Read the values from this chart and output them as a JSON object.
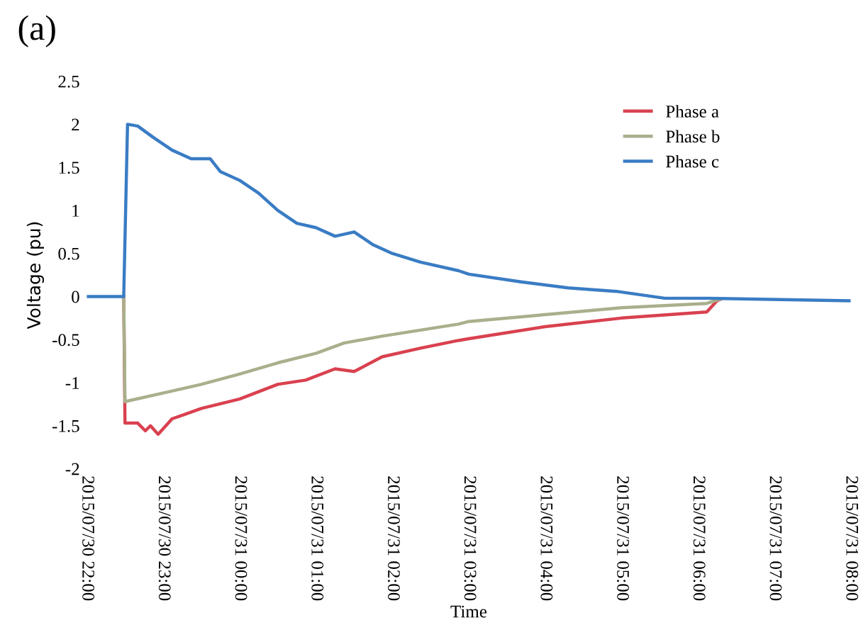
{
  "chart_data": {
    "type": "line",
    "title": "(a)",
    "xlabel": "Time",
    "ylabel": "Voltage (pu)",
    "xlim": [
      "2015-07-30T22:00",
      "2015-07-31T08:00"
    ],
    "xticks": [
      {
        "value": "2015-07-30T22:00",
        "label": "2015/07/30 22:00"
      },
      {
        "value": "2015-07-30T23:00",
        "label": "2015/07/30 23:00"
      },
      {
        "value": "2015-07-31T00:00",
        "label": "2015/07/31 00:00"
      },
      {
        "value": "2015-07-31T01:00",
        "label": "2015/07/31 01:00"
      },
      {
        "value": "2015-07-31T02:00",
        "label": "2015/07/31 02:00"
      },
      {
        "value": "2015-07-31T03:00",
        "label": "2015/07/31 03:00"
      },
      {
        "value": "2015-07-31T04:00",
        "label": "2015/07/31 04:00"
      },
      {
        "value": "2015-07-31T05:00",
        "label": "2015/07/31 05:00"
      },
      {
        "value": "2015-07-31T06:00",
        "label": "2015/07/31 06:00"
      },
      {
        "value": "2015-07-31T07:00",
        "label": "2015/07/31 07:00"
      },
      {
        "value": "2015-07-31T08:00",
        "label": "2015/07/31 08:00"
      }
    ],
    "ylim": [
      -2,
      2.5
    ],
    "yticks": [
      -2,
      -1.5,
      -1,
      -0.5,
      0,
      0.5,
      1,
      1.5,
      2,
      2.5
    ],
    "grid": false,
    "legend": "top right",
    "marker": "none",
    "line_style": "solid",
    "series": [
      {
        "name": "Phase a",
        "color": "#d9414f",
        "x": [
          "2015-07-30T22:29",
          "2015-07-30T22:30",
          "2015-07-30T22:40",
          "2015-07-30T22:46",
          "2015-07-30T22:50",
          "2015-07-30T22:56",
          "2015-07-30T23:07",
          "2015-07-30T23:30",
          "2015-07-31T00:00",
          "2015-07-31T00:30",
          "2015-07-31T00:52",
          "2015-07-31T01:15",
          "2015-07-31T01:30",
          "2015-07-31T01:52",
          "2015-07-31T02:22",
          "2015-07-31T02:52",
          "2015-07-31T03:00",
          "2015-07-31T04:00",
          "2015-07-31T05:00",
          "2015-07-31T06:07",
          "2015-07-31T06:15",
          "2015-07-31T06:18"
        ],
        "values": [
          0,
          -1.47,
          -1.47,
          -1.56,
          -1.5,
          -1.6,
          -1.42,
          -1.3,
          -1.19,
          -1.02,
          -0.97,
          -0.84,
          -0.87,
          -0.7,
          -0.6,
          -0.51,
          -0.49,
          -0.35,
          -0.25,
          -0.18,
          -0.05,
          -0.03
        ]
      },
      {
        "name": "Phase b",
        "color": "#a8b08c",
        "x": [
          "2015-07-30T22:29",
          "2015-07-30T22:30",
          "2015-07-30T23:00",
          "2015-07-30T23:30",
          "2015-07-31T00:00",
          "2015-07-31T00:30",
          "2015-07-31T01:00",
          "2015-07-31T01:22",
          "2015-07-31T01:52",
          "2015-07-31T02:22",
          "2015-07-31T02:52",
          "2015-07-31T03:00",
          "2015-07-31T04:00",
          "2015-07-31T05:00",
          "2015-07-31T06:07",
          "2015-07-31T06:15",
          "2015-07-31T06:18"
        ],
        "values": [
          0,
          -1.22,
          -1.12,
          -1.02,
          -0.9,
          -0.77,
          -0.66,
          -0.54,
          -0.46,
          -0.39,
          -0.32,
          -0.29,
          -0.21,
          -0.13,
          -0.08,
          -0.04,
          -0.03
        ]
      },
      {
        "name": "Phase c",
        "color": "#3a7cc4",
        "x": [
          "2015-07-30T22:00",
          "2015-07-30T22:29",
          "2015-07-30T22:32",
          "2015-07-30T22:40",
          "2015-07-30T22:52",
          "2015-07-30T23:07",
          "2015-07-30T23:22",
          "2015-07-30T23:37",
          "2015-07-30T23:45",
          "2015-07-31T00:00",
          "2015-07-31T00:15",
          "2015-07-31T00:30",
          "2015-07-31T00:45",
          "2015-07-31T01:00",
          "2015-07-31T01:15",
          "2015-07-31T01:30",
          "2015-07-31T01:45",
          "2015-07-31T02:00",
          "2015-07-31T02:22",
          "2015-07-31T02:52",
          "2015-07-31T03:00",
          "2015-07-31T03:41",
          "2015-07-31T04:18",
          "2015-07-31T04:56",
          "2015-07-31T05:34",
          "2015-07-31T06:06",
          "2015-07-31T08:00"
        ],
        "values": [
          0,
          0,
          2.0,
          1.98,
          1.85,
          1.7,
          1.6,
          1.6,
          1.45,
          1.35,
          1.2,
          1.0,
          0.85,
          0.8,
          0.7,
          0.75,
          0.6,
          0.5,
          0.4,
          0.3,
          0.26,
          0.17,
          0.1,
          0.06,
          -0.02,
          -0.02,
          -0.05
        ]
      }
    ]
  }
}
